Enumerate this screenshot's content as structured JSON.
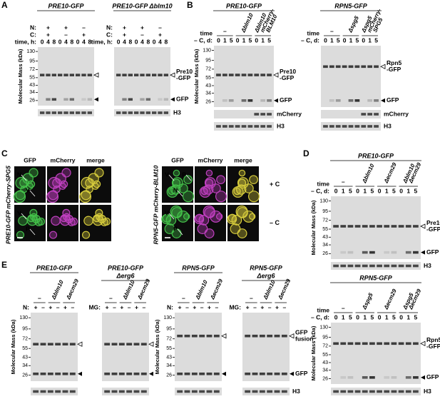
{
  "panels": {
    "A": {
      "letter": "A",
      "blots": [
        {
          "title": "PRE10-GFP",
          "rows": [
            {
              "label": "N:",
              "values": [
                "+",
                "+",
                "–"
              ]
            },
            {
              "label": "C:",
              "values": [
                "+",
                "–",
                "+"
              ]
            },
            {
              "label": "time, h:",
              "values": [
                "0",
                "4",
                "8",
                "0",
                "4",
                "8",
                "0",
                "4",
                "8"
              ]
            }
          ],
          "mass_label": "Molecular Mass (kDa)",
          "mass_ticks": [
            130,
            95,
            72,
            55,
            43,
            34,
            26
          ]
        },
        {
          "title": "PRE10-GFP Δblm10",
          "rows": [
            {
              "label": "N:",
              "values": [
                "+",
                "+",
                "–"
              ]
            },
            {
              "label": "C:",
              "values": [
                "+",
                "–",
                "+"
              ]
            },
            {
              "label": "time, h:",
              "values": [
                "0",
                "4",
                "8",
                "0",
                "4",
                "8",
                "0",
                "4",
                "8"
              ]
            }
          ],
          "band_labels": [
            [
              "Pre10",
              "-GFP"
            ],
            [
              "GFP"
            ]
          ],
          "strip_labels": [
            "H3"
          ]
        }
      ]
    },
    "B": {
      "letter": "B",
      "blots": [
        {
          "title": "PRE10-GFP",
          "time_label": "time",
          "genotypes": [
            [
              "–"
            ],
            [
              "Δblm10"
            ],
            [
              "Δblm10",
              "mCherry-",
              "BLM10"
            ]
          ],
          "rows": [
            {
              "label": "– C, d:",
              "values": [
                "0",
                "1",
                "5",
                "0",
                "1",
                "5",
                "0",
                "1",
                "5"
              ]
            }
          ],
          "mass_label": "Molecular Mass (kDa)",
          "mass_ticks": [
            130,
            95,
            72,
            55,
            43,
            34,
            26
          ],
          "band_labels": [
            [
              "Pre10",
              "-GFP"
            ],
            [
              "GFP"
            ]
          ],
          "strip_labels": [
            "mCherry",
            "H3"
          ]
        },
        {
          "title": "RPN5-GFP",
          "time_label": "time",
          "genotypes": [
            [
              "–"
            ],
            [
              "Δspg5"
            ],
            [
              "Δspg5",
              "mCherry-",
              "SPG5"
            ]
          ],
          "rows": [
            {
              "label": "– C, d:",
              "values": [
                "0",
                "1",
                "5",
                "0",
                "1",
                "5",
                "0",
                "1",
                "5"
              ]
            }
          ],
          "band_labels": [
            [
              "Rpn5",
              "-GFP"
            ],
            [
              "GFP"
            ]
          ],
          "strip_labels": [
            "mCherry",
            "H3"
          ]
        }
      ]
    },
    "C": {
      "letter": "C",
      "sets": [
        {
          "strain": "PRE10-GFP mCherry-SPG5",
          "channels": [
            "GFP",
            "mCherry",
            "merge"
          ],
          "annotations": [
            [
              "N",
              "V"
            ],
            [
              "V",
              "P"
            ]
          ]
        },
        {
          "strain": "RPN5-GFP mCherry-BLM10",
          "channels": [
            "GFP",
            "mCherry",
            "merge"
          ],
          "annotations": [
            [
              "V",
              "N",
              "P"
            ],
            [
              "V",
              "P"
            ]
          ]
        }
      ],
      "conditions": [
        "+ C",
        "– C"
      ]
    },
    "D": {
      "letter": "D",
      "blots": [
        {
          "title": "PRE10-GFP",
          "time_label": "time",
          "genotypes": [
            [
              "–"
            ],
            [
              "Δblm10"
            ],
            [
              "Δecm29"
            ],
            [
              "Δblm10",
              "Δecm29"
            ]
          ],
          "rows": [
            {
              "label": "– C, d:",
              "values": [
                "0",
                "1",
                "5",
                "0",
                "1",
                "5",
                "0",
                "1",
                "5",
                "0",
                "1",
                "5"
              ]
            }
          ],
          "mass_label": "Molecular Mass (kDa)",
          "mass_ticks": [
            130,
            95,
            72,
            55,
            43,
            34,
            26
          ],
          "band_labels": [
            [
              "Pre10",
              "-GFP"
            ],
            [
              "GFP"
            ]
          ],
          "strip_labels": [
            "H3"
          ]
        },
        {
          "title": "RPN5-GFP",
          "time_label": "time",
          "genotypes": [
            [
              "–"
            ],
            [
              "Δspg5"
            ],
            [
              "Δecm29"
            ],
            [
              "Δspg5",
              "Δecm29"
            ]
          ],
          "rows": [
            {
              "label": "– C, d:",
              "values": [
                "0",
                "1",
                "5",
                "0",
                "1",
                "5",
                "0",
                "1",
                "5",
                "0",
                "1",
                "5"
              ]
            }
          ],
          "mass_label": "Molecular Mass (kDa)",
          "mass_ticks": [
            130,
            95,
            72,
            55,
            43,
            34,
            26
          ],
          "band_labels": [
            [
              "Rpn5",
              "-GFP"
            ],
            [
              "GFP"
            ]
          ],
          "strip_labels": [
            "H3"
          ]
        }
      ]
    },
    "E": {
      "letter": "E",
      "blots": [
        {
          "title": "PRE10-GFP",
          "genotypes": [
            [
              "–"
            ],
            [
              "Δblm10"
            ],
            [
              "Δecm29"
            ]
          ],
          "rows": [
            {
              "label": "N:",
              "values": [
                "+",
                "–",
                "+",
                "–",
                "+",
                "–"
              ]
            }
          ],
          "mass_label": "Molecular Mass (kDa)",
          "mass_ticks": [
            130,
            95,
            72,
            55,
            43,
            34,
            26
          ]
        },
        {
          "title": "PRE10-GFP",
          "subtitle": "Δerg6",
          "genotypes": [
            [
              "–"
            ],
            [
              "Δblm10"
            ],
            [
              "Δecm29"
            ]
          ],
          "rows": [
            {
              "label": "MG:",
              "values": [
                "+",
                "–",
                "+",
                "–",
                "+",
                "–"
              ]
            }
          ]
        },
        {
          "title": "RPN5-GFP",
          "genotypes": [
            [
              "–"
            ],
            [
              "Δblm10"
            ],
            [
              "Δecm29"
            ]
          ],
          "rows": [
            {
              "label": "N:",
              "values": [
                "+",
                "–",
                "+",
                "–",
                "+",
                "–"
              ]
            }
          ],
          "mass_label": "Molecular Mass (kDa)",
          "mass_ticks": [
            130,
            95,
            72,
            55,
            43,
            34,
            26
          ]
        },
        {
          "title": "RPN5-GFP",
          "subtitle": "Δerg6",
          "genotypes": [
            [
              "–"
            ],
            [
              "Δblm10"
            ],
            [
              "Δecm29"
            ]
          ],
          "rows": [
            {
              "label": "MG:",
              "values": [
                "+",
                "–",
                "+",
                "–",
                "+",
                "–"
              ]
            }
          ],
          "band_labels": [
            [
              "GFP",
              "fusion"
            ],
            [
              "GFP"
            ]
          ],
          "strip_labels": [
            "H3"
          ]
        }
      ]
    }
  }
}
